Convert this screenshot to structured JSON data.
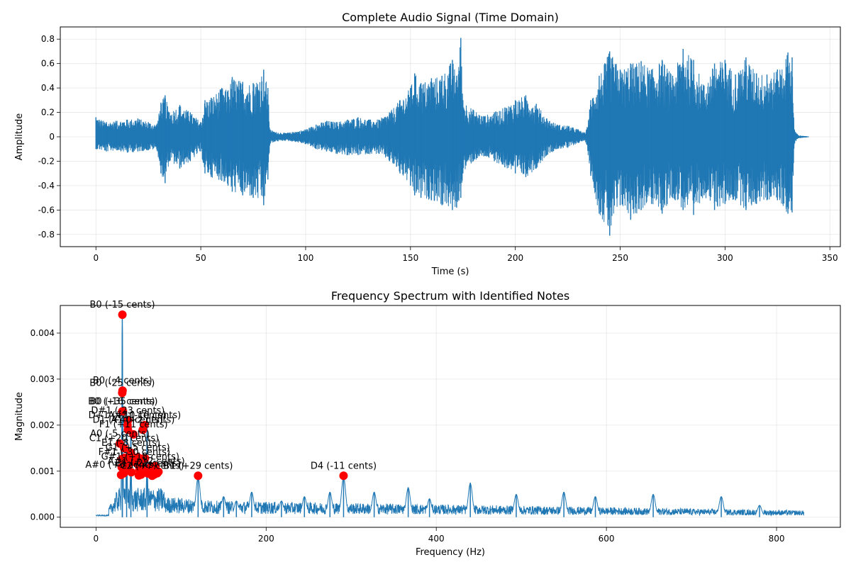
{
  "chart_data": [
    {
      "type": "line",
      "title": "Complete Audio Signal (Time Domain)",
      "xlabel": "Time (s)",
      "ylabel": "Amplitude",
      "xlim": [
        -17,
        355
      ],
      "ylim": [
        -0.9,
        0.9
      ],
      "xticks": [
        0,
        50,
        100,
        150,
        200,
        250,
        300,
        350
      ],
      "yticks": [
        -0.8,
        -0.6,
        -0.4,
        -0.2,
        0.0,
        0.2,
        0.4,
        0.6,
        0.8
      ],
      "grid": true,
      "color": "#1f77b4",
      "envelope": {
        "x": [
          0,
          5,
          10,
          15,
          20,
          25,
          29,
          31,
          33,
          35,
          40,
          45,
          50,
          52,
          55,
          60,
          63,
          65,
          70,
          75,
          80,
          82,
          83,
          85,
          90,
          95,
          100,
          105,
          110,
          115,
          120,
          125,
          130,
          135,
          140,
          145,
          150,
          152,
          155,
          160,
          165,
          170,
          172,
          174,
          175,
          180,
          185,
          190,
          195,
          200,
          205,
          210,
          215,
          220,
          225,
          230,
          233,
          234,
          236,
          240,
          245,
          250,
          255,
          260,
          265,
          270,
          275,
          280,
          285,
          290,
          295,
          300,
          305,
          310,
          315,
          320,
          325,
          330,
          332,
          333,
          335,
          340
        ],
        "upper": [
          0.16,
          0.12,
          0.13,
          0.14,
          0.15,
          0.12,
          0.1,
          0.28,
          0.34,
          0.2,
          0.26,
          0.2,
          0.12,
          0.3,
          0.32,
          0.4,
          0.38,
          0.49,
          0.45,
          0.44,
          0.55,
          0.4,
          0.06,
          0.04,
          0.03,
          0.04,
          0.06,
          0.1,
          0.13,
          0.12,
          0.14,
          0.16,
          0.14,
          0.14,
          0.2,
          0.3,
          0.4,
          0.52,
          0.44,
          0.48,
          0.5,
          0.63,
          0.5,
          0.81,
          0.3,
          0.22,
          0.17,
          0.2,
          0.24,
          0.3,
          0.34,
          0.27,
          0.15,
          0.1,
          0.09,
          0.06,
          0.03,
          0.06,
          0.3,
          0.5,
          0.7,
          0.55,
          0.6,
          0.62,
          0.55,
          0.63,
          0.5,
          0.72,
          0.63,
          0.42,
          0.6,
          0.63,
          0.51,
          0.65,
          0.52,
          0.51,
          0.55,
          0.69,
          0.65,
          0.06,
          0.01,
          0.0
        ],
        "lower": [
          -0.1,
          -0.12,
          -0.11,
          -0.13,
          -0.12,
          -0.11,
          -0.1,
          -0.3,
          -0.38,
          -0.2,
          -0.26,
          -0.2,
          -0.12,
          -0.3,
          -0.33,
          -0.36,
          -0.4,
          -0.45,
          -0.48,
          -0.5,
          -0.56,
          -0.35,
          -0.06,
          -0.04,
          -0.03,
          -0.04,
          -0.06,
          -0.1,
          -0.12,
          -0.14,
          -0.15,
          -0.15,
          -0.14,
          -0.14,
          -0.2,
          -0.3,
          -0.4,
          -0.48,
          -0.5,
          -0.52,
          -0.56,
          -0.6,
          -0.58,
          -0.5,
          -0.3,
          -0.2,
          -0.16,
          -0.2,
          -0.25,
          -0.3,
          -0.33,
          -0.26,
          -0.15,
          -0.1,
          -0.09,
          -0.05,
          -0.03,
          -0.06,
          -0.32,
          -0.63,
          -0.81,
          -0.56,
          -0.68,
          -0.6,
          -0.55,
          -0.63,
          -0.5,
          -0.6,
          -0.64,
          -0.48,
          -0.6,
          -0.55,
          -0.52,
          -0.6,
          -0.55,
          -0.52,
          -0.52,
          -0.63,
          -0.62,
          -0.06,
          -0.01,
          0.0
        ]
      }
    },
    {
      "type": "line",
      "title": "Frequency Spectrum with Identified Notes",
      "xlabel": "Frequency (Hz)",
      "ylabel": "Magnitude",
      "xlim": [
        -42,
        875
      ],
      "ylim": [
        -0.00022,
        0.0046
      ],
      "xticks": [
        0,
        200,
        400,
        600,
        800
      ],
      "yticks": [
        0.0,
        0.001,
        0.002,
        0.003,
        0.004
      ],
      "ytick_labels": [
        "0.000",
        "0.001",
        "0.002",
        "0.003",
        "0.004"
      ],
      "grid": true,
      "color": "#1f77b4",
      "marker_color": "#ff0000",
      "spectrum_peaks": [
        {
          "f": 30.9,
          "m": 0.0044
        },
        {
          "f": 31.0,
          "m": 0.00275
        },
        {
          "f": 36,
          "m": 0.0023
        },
        {
          "f": 41,
          "m": 0.0021
        },
        {
          "f": 60,
          "m": 0.002
        },
        {
          "f": 120,
          "m": 0.0009
        },
        {
          "f": 150,
          "m": 0.00045
        },
        {
          "f": 165,
          "m": 0.00035
        },
        {
          "f": 183,
          "m": 0.00055
        },
        {
          "f": 218,
          "m": 0.00035
        },
        {
          "f": 245,
          "m": 0.00045
        },
        {
          "f": 275,
          "m": 0.00055
        },
        {
          "f": 291,
          "m": 0.0009
        },
        {
          "f": 327,
          "m": 0.00055
        },
        {
          "f": 367,
          "m": 0.00065
        },
        {
          "f": 392,
          "m": 0.0004
        },
        {
          "f": 440,
          "m": 0.00075
        },
        {
          "f": 494,
          "m": 0.0005
        },
        {
          "f": 550,
          "m": 0.00055
        },
        {
          "f": 587,
          "m": 0.00045
        },
        {
          "f": 655,
          "m": 0.0005
        },
        {
          "f": 735,
          "m": 0.00045
        },
        {
          "f": 780,
          "m": 0.00025
        }
      ],
      "markers": [
        {
          "note": "B0 (-15 cents)",
          "f": 31,
          "m": 0.0044
        },
        {
          "note": "B0 (-4 cents)",
          "f": 31.2,
          "m": 0.00275
        },
        {
          "note": "B0 (-25 cents)",
          "f": 30.8,
          "m": 0.0027
        },
        {
          "note": "B0 (+35 cents)",
          "f": 31.6,
          "m": 0.0023
        },
        {
          "note": "B0 (-16 cents)",
          "f": 31.0,
          "m": 0.0023
        },
        {
          "note": "D#1 (-23 cents)",
          "f": 37.5,
          "m": 0.0021
        },
        {
          "note": "D+1 (+10 cents)",
          "f": 37,
          "m": 0.002
        },
        {
          "note": "D1 (+40 cents)",
          "f": 37.5,
          "m": 0.0019
        },
        {
          "note": "A#1 (-10 cents)",
          "f": 57,
          "m": 0.002
        },
        {
          "note": "A1 (+2 cents)",
          "f": 55,
          "m": 0.0019
        },
        {
          "note": "F1 (+11 cents)",
          "f": 44,
          "m": 0.0018
        },
        {
          "note": "A0 (-5 cents)",
          "f": 28,
          "m": 0.0016
        },
        {
          "note": "C1 (+20 cents)",
          "f": 33,
          "m": 0.0015
        },
        {
          "note": "E1 (-8 cents)",
          "f": 41,
          "m": 0.0014
        },
        {
          "note": "G1 (+5 cents)",
          "f": 49,
          "m": 0.0013
        },
        {
          "note": "F#1 (-30 cents)",
          "f": 45,
          "m": 0.0012
        },
        {
          "note": "G#1 (+18 cents)",
          "f": 52,
          "m": 0.0011
        },
        {
          "note": "A#1 (+12 cents)",
          "f": 59,
          "m": 0.001
        },
        {
          "note": "B1 (-22 cents)",
          "f": 61,
          "m": 0.00095
        },
        {
          "note": "C2 (+7 cents)",
          "f": 66,
          "m": 0.0009
        },
        {
          "note": "A#0 (+3 cents)",
          "f": 29.5,
          "m": 0.00092
        },
        {
          "note": "B1 (+29 cents)",
          "f": 120,
          "m": 0.0009
        },
        {
          "note": "D4 (-11 cents)",
          "f": 291,
          "m": 0.0009
        }
      ]
    }
  ]
}
